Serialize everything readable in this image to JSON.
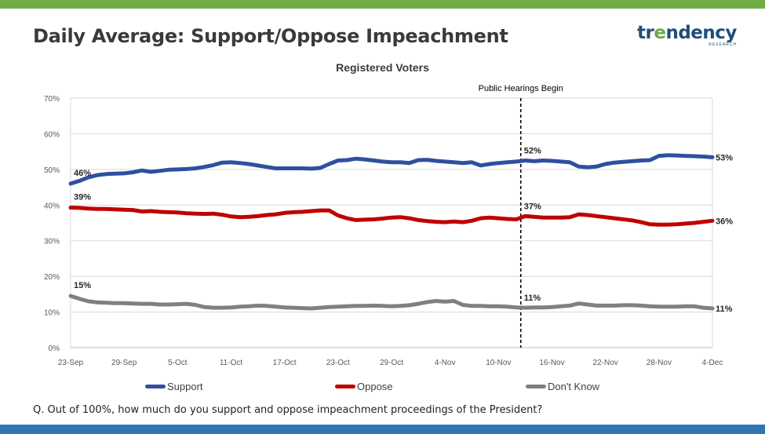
{
  "header": {
    "title": "Daily Average: Support/Oppose Impeachment",
    "logo_main": "tr",
    "logo_accent": "e",
    "logo_rest": "ndency",
    "logo_sub": "RESEARCH"
  },
  "footer": {
    "question": "Q. Out of 100%, how much do you support and oppose impeachment proceedings of the President?"
  },
  "colors": {
    "top_bar": "#70ad47",
    "bottom_bar": "#2e75b6",
    "support": "#2f4fa0",
    "oppose": "#c00000",
    "dont_know": "#808080"
  },
  "chart_data": {
    "type": "line",
    "title": "Registered Voters",
    "xlabel": "",
    "ylabel": "",
    "ylim": [
      0,
      70
    ],
    "yticks": [
      0,
      10,
      20,
      30,
      40,
      50,
      60,
      70
    ],
    "ytick_labels": [
      "0%",
      "10%",
      "20%",
      "30%",
      "40%",
      "50%",
      "60%",
      "70%"
    ],
    "x_range_days": [
      0,
      72
    ],
    "x_ticks": [
      {
        "day": 0,
        "label": "23-Sep"
      },
      {
        "day": 6,
        "label": "29-Sep"
      },
      {
        "day": 12,
        "label": "5-Oct"
      },
      {
        "day": 18,
        "label": "11-Oct"
      },
      {
        "day": 24,
        "label": "17-Oct"
      },
      {
        "day": 30,
        "label": "23-Oct"
      },
      {
        "day": 36,
        "label": "29-Oct"
      },
      {
        "day": 42,
        "label": "4-Nov"
      },
      {
        "day": 48,
        "label": "10-Nov"
      },
      {
        "day": 54,
        "label": "16-Nov"
      },
      {
        "day": 60,
        "label": "22-Nov"
      },
      {
        "day": 66,
        "label": "28-Nov"
      },
      {
        "day": 72,
        "label": "4-Dec"
      }
    ],
    "annotation": {
      "day": 50.5,
      "label": "Public Hearings Begin"
    },
    "series": [
      {
        "name": "Support",
        "color": "#2f4fa0",
        "x": [
          0,
          1,
          2,
          3,
          4,
          5,
          6,
          7,
          8,
          9,
          10,
          11,
          12,
          13,
          14,
          15,
          16,
          17,
          18,
          19,
          20,
          21,
          22,
          23,
          24,
          25,
          26,
          27,
          28,
          29,
          30,
          31,
          32,
          33,
          34,
          35,
          36,
          37,
          38,
          39,
          40,
          41,
          42,
          43,
          44,
          45,
          46,
          47,
          48,
          49,
          50,
          51,
          52,
          53,
          54,
          55,
          56,
          57,
          58,
          59,
          60,
          61,
          62,
          63,
          64,
          65,
          66,
          67,
          68,
          69,
          70,
          71,
          72
        ],
        "values": [
          46,
          46.8,
          47.8,
          48.4,
          48.7,
          48.8,
          48.9,
          49.2,
          49.7,
          49.3,
          49.6,
          49.9,
          50,
          50.1,
          50.3,
          50.7,
          51.2,
          51.9,
          52,
          51.8,
          51.5,
          51.1,
          50.7,
          50.3,
          50.3,
          50.3,
          50.3,
          50.2,
          50.4,
          51.5,
          52.5,
          52.6,
          53,
          52.8,
          52.5,
          52.2,
          52,
          52,
          51.8,
          52.6,
          52.7,
          52.4,
          52.2,
          52,
          51.8,
          52,
          51.1,
          51.5,
          51.8,
          52,
          52.2,
          52.5,
          52.3,
          52.5,
          52.4,
          52.2,
          52,
          50.8,
          50.6,
          50.8,
          51.5,
          51.9,
          52.1,
          52.3,
          52.5,
          52.6,
          53.8,
          54,
          53.9,
          53.8,
          53.7,
          53.6,
          53.4
        ],
        "start_label": "46%",
        "mid_label": "52%",
        "end_label": "53%"
      },
      {
        "name": "Oppose",
        "color": "#c00000",
        "x": [
          0,
          1,
          2,
          3,
          4,
          5,
          6,
          7,
          8,
          9,
          10,
          11,
          12,
          13,
          14,
          15,
          16,
          17,
          18,
          19,
          20,
          21,
          22,
          23,
          24,
          25,
          26,
          27,
          28,
          29,
          30,
          31,
          32,
          33,
          34,
          35,
          36,
          37,
          38,
          39,
          40,
          41,
          42,
          43,
          44,
          45,
          46,
          47,
          48,
          49,
          50,
          51,
          52,
          53,
          54,
          55,
          56,
          57,
          58,
          59,
          60,
          61,
          62,
          63,
          64,
          65,
          66,
          67,
          68,
          69,
          70,
          71,
          72
        ],
        "values": [
          39.3,
          39.2,
          39,
          38.9,
          38.9,
          38.8,
          38.7,
          38.6,
          38.2,
          38.3,
          38.1,
          38,
          37.9,
          37.7,
          37.6,
          37.5,
          37.6,
          37.3,
          36.8,
          36.6,
          36.7,
          36.9,
          37.2,
          37.4,
          37.8,
          38,
          38.1,
          38.3,
          38.5,
          38.5,
          37.1,
          36.3,
          35.8,
          35.9,
          36,
          36.2,
          36.5,
          36.6,
          36.3,
          35.8,
          35.5,
          35.3,
          35.2,
          35.4,
          35.2,
          35.6,
          36.3,
          36.5,
          36.3,
          36.1,
          36,
          36.9,
          36.7,
          36.5,
          36.5,
          36.5,
          36.6,
          37.4,
          37.2,
          36.9,
          36.6,
          36.3,
          36,
          35.7,
          35.2,
          34.6,
          34.5,
          34.5,
          34.6,
          34.8,
          35,
          35.3,
          35.6
        ],
        "start_label": "39%",
        "mid_label": "37%",
        "end_label": "36%"
      },
      {
        "name": "Don't Know",
        "color": "#808080",
        "x": [
          0,
          1,
          2,
          3,
          4,
          5,
          6,
          7,
          8,
          9,
          10,
          11,
          12,
          13,
          14,
          15,
          16,
          17,
          18,
          19,
          20,
          21,
          22,
          23,
          24,
          25,
          26,
          27,
          28,
          29,
          30,
          31,
          32,
          33,
          34,
          35,
          36,
          37,
          38,
          39,
          40,
          41,
          42,
          43,
          44,
          45,
          46,
          47,
          48,
          49,
          50,
          51,
          52,
          53,
          54,
          55,
          56,
          57,
          58,
          59,
          60,
          61,
          62,
          63,
          64,
          65,
          66,
          67,
          68,
          69,
          70,
          71,
          72
        ],
        "values": [
          14.5,
          13.7,
          13,
          12.7,
          12.6,
          12.5,
          12.5,
          12.4,
          12.3,
          12.3,
          12.1,
          12.1,
          12.2,
          12.3,
          12,
          11.4,
          11.2,
          11.2,
          11.3,
          11.5,
          11.6,
          11.8,
          11.7,
          11.5,
          11.3,
          11.2,
          11.1,
          11,
          11.2,
          11.4,
          11.5,
          11.6,
          11.7,
          11.7,
          11.8,
          11.7,
          11.6,
          11.7,
          11.9,
          12.3,
          12.8,
          13.1,
          12.9,
          13.1,
          12,
          11.7,
          11.7,
          11.6,
          11.6,
          11.5,
          11.3,
          11.2,
          11.3,
          11.3,
          11.4,
          11.6,
          11.8,
          12.4,
          12.1,
          11.8,
          11.8,
          11.8,
          11.9,
          11.9,
          11.8,
          11.6,
          11.5,
          11.5,
          11.5,
          11.6,
          11.6,
          11.2,
          11
        ],
        "start_label": "15%",
        "mid_label": "11%",
        "end_label": "11%"
      }
    ],
    "legend_position": "bottom"
  }
}
